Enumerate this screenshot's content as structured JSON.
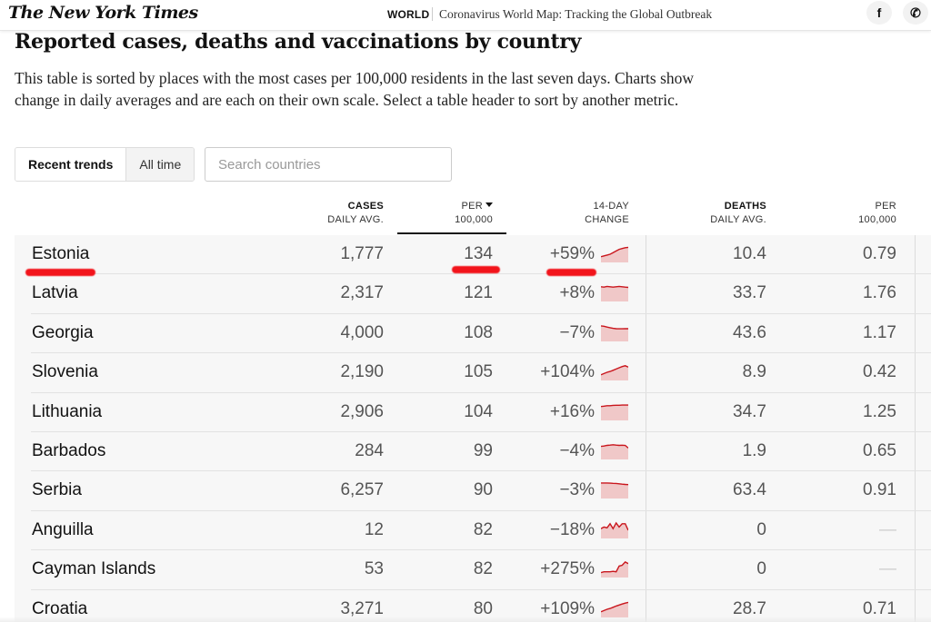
{
  "header": {
    "logo": "The New York Times",
    "section": "WORLD",
    "headline": "Coronavirus World Map: Tracking the Global Outbreak",
    "social": [
      {
        "icon": "facebook-icon",
        "glyph": "f"
      },
      {
        "icon": "whatsapp-icon",
        "glyph": "✆"
      }
    ]
  },
  "page": {
    "title": "Reported cases, deaths and vaccinations by country",
    "description": "This table is sorted by places with the most cases per 100,000 residents in the last seven days. Charts show change in daily averages and are each on their own scale. Select a table header to sort by another metric."
  },
  "controls": {
    "toggle": [
      {
        "label": "Recent trends",
        "active": true
      },
      {
        "label": "All time",
        "active": false
      }
    ],
    "search_placeholder": "Search countries",
    "search_value": ""
  },
  "table": {
    "columns": [
      {
        "key": "cases",
        "line1": "CASES",
        "line2": "DAILY AVG.",
        "bold": true
      },
      {
        "key": "cases_per",
        "line1": "PER",
        "line2": "100,000",
        "bold": false,
        "sorted": true,
        "sort_dir": "desc"
      },
      {
        "key": "change",
        "line1": "14-DAY",
        "line2": "CHANGE",
        "bold": false
      },
      {
        "key": "deaths",
        "line1": "DEATHS",
        "line2": "DAILY AVG.",
        "bold": true
      },
      {
        "key": "deaths_per",
        "line1": "PER",
        "line2": "100,000",
        "bold": false
      }
    ],
    "rows": [
      {
        "country": "Estonia",
        "cases": "1,777",
        "cases_per": "134",
        "change": "+59%",
        "deaths": "10.4",
        "deaths_per": "0.79",
        "trend": [
          0.35,
          0.4,
          0.45,
          0.5,
          0.6,
          0.7,
          0.8,
          0.85,
          0.9,
          0.92
        ]
      },
      {
        "country": "Latvia",
        "cases": "2,317",
        "cases_per": "121",
        "change": "+8%",
        "deaths": "33.7",
        "deaths_per": "1.76",
        "trend": [
          0.9,
          0.88,
          0.92,
          0.9,
          0.88,
          0.9,
          0.92,
          0.9,
          0.88,
          0.86
        ]
      },
      {
        "country": "Georgia",
        "cases": "4,000",
        "cases_per": "108",
        "change": "−7%",
        "deaths": "43.6",
        "deaths_per": "1.17",
        "trend": [
          0.95,
          0.93,
          0.88,
          0.84,
          0.8,
          0.78,
          0.77,
          0.77,
          0.78,
          0.78
        ]
      },
      {
        "country": "Slovenia",
        "cases": "2,190",
        "cases_per": "105",
        "change": "+104%",
        "deaths": "8.9",
        "deaths_per": "0.42",
        "trend": [
          0.35,
          0.42,
          0.5,
          0.55,
          0.62,
          0.7,
          0.78,
          0.85,
          0.9,
          0.82
        ]
      },
      {
        "country": "Lithuania",
        "cases": "2,906",
        "cases_per": "104",
        "change": "+16%",
        "deaths": "34.7",
        "deaths_per": "1.25",
        "trend": [
          0.85,
          0.87,
          0.9,
          0.9,
          0.92,
          0.93,
          0.93,
          0.94,
          0.94,
          0.94
        ]
      },
      {
        "country": "Barbados",
        "cases": "284",
        "cases_per": "99",
        "change": "−4%",
        "deaths": "1.9",
        "deaths_per": "0.65",
        "trend": [
          0.8,
          0.82,
          0.86,
          0.88,
          0.9,
          0.88,
          0.86,
          0.87,
          0.86,
          0.7
        ]
      },
      {
        "country": "Serbia",
        "cases": "6,257",
        "cases_per": "90",
        "change": "−3%",
        "deaths": "63.4",
        "deaths_per": "0.91",
        "trend": [
          0.95,
          0.95,
          0.95,
          0.94,
          0.93,
          0.92,
          0.9,
          0.88,
          0.86,
          0.85
        ]
      },
      {
        "country": "Anguilla",
        "cases": "12",
        "cases_per": "82",
        "change": "−18%",
        "deaths": "0",
        "deaths_per": "—",
        "trend": [
          0.6,
          0.7,
          0.65,
          0.9,
          0.6,
          0.95,
          0.7,
          0.9,
          0.9,
          0.5
        ]
      },
      {
        "country": "Cayman Islands",
        "cases": "53",
        "cases_per": "82",
        "change": "+275%",
        "deaths": "0",
        "deaths_per": "—",
        "trend": [
          0.3,
          0.35,
          0.35,
          0.35,
          0.38,
          0.35,
          0.7,
          0.75,
          0.95,
          0.85
        ]
      },
      {
        "country": "Croatia",
        "cases": "3,271",
        "cases_per": "80",
        "change": "+109%",
        "deaths": "28.7",
        "deaths_per": "0.71",
        "trend": [
          0.35,
          0.42,
          0.5,
          0.55,
          0.62,
          0.7,
          0.76,
          0.82,
          0.88,
          0.92
        ]
      }
    ],
    "sparkline_colors": {
      "line": "#c9161d",
      "fill": "#f0c8c8"
    }
  },
  "annotations": {
    "highlight_color": "#f2141b",
    "highlighted_row": "Estonia",
    "highlighted_fields": [
      "country",
      "cases_per",
      "change"
    ]
  }
}
